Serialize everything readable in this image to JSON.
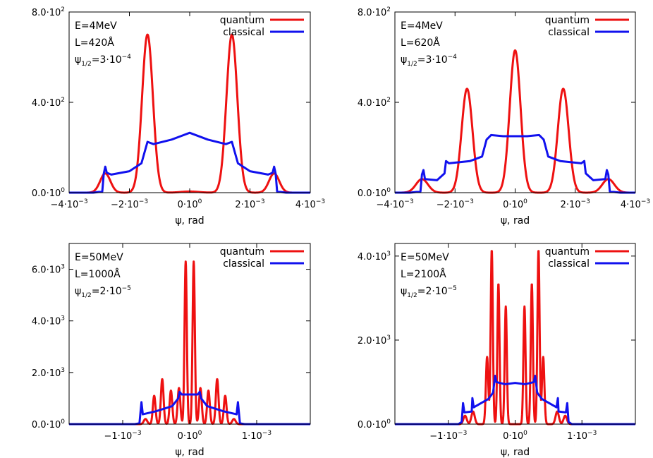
{
  "chart_data": [
    {
      "type": "line",
      "xlabel": "ψ, rad",
      "ylabel": "",
      "xlim": [
        -0.004,
        0.004
      ],
      "ylim": [
        0,
        800
      ],
      "grid": false,
      "legend_position": "top-right",
      "x_ticks": [
        {
          "v": -0.004,
          "mant": "-4·10",
          "exp": "-3"
        },
        {
          "v": -0.002,
          "mant": "-2·10",
          "exp": "-3"
        },
        {
          "v": 0,
          "mant": "0·10",
          "exp": "0"
        },
        {
          "v": 0.002,
          "mant": "2·10",
          "exp": "-3"
        },
        {
          "v": 0.004,
          "mant": "4·10",
          "exp": "-3"
        }
      ],
      "y_ticks": [
        {
          "v": 0,
          "mant": "0.0·10",
          "exp": "0"
        },
        {
          "v": 400,
          "mant": "4.0·10",
          "exp": "2"
        },
        {
          "v": 800,
          "mant": "8.0·10",
          "exp": "2"
        }
      ],
      "annotations": {
        "e": "E=4MeV",
        "l": "L=420Å",
        "psi_sym": "ψ",
        "psi_sub": "1/2",
        "psi_eq": "=3·10",
        "psi_exp": "-4"
      },
      "series": [
        {
          "name": "quantum",
          "color": "#ee1111",
          "peaks": [
            {
              "x": -0.0028,
              "h": 85,
              "w": 0.00017
            },
            {
              "x": -0.0014,
              "h": 700,
              "w": 0.00018
            },
            {
              "x": 0.0,
              "h": 5,
              "w": 0.0003
            },
            {
              "x": 0.0014,
              "h": 700,
              "w": 0.00018
            },
            {
              "x": 0.0028,
              "h": 85,
              "w": 0.00017
            }
          ]
        },
        {
          "name": "classical",
          "color": "#1111ee",
          "profile": [
            [
              -0.0032,
              0
            ],
            [
              -0.0029,
              5
            ],
            [
              -0.00285,
              85
            ],
            [
              -0.0028,
              115
            ],
            [
              -0.00275,
              88
            ],
            [
              -0.0026,
              80
            ],
            [
              -0.002,
              95
            ],
            [
              -0.0016,
              130
            ],
            [
              -0.0014,
              225
            ],
            [
              -0.0012,
              215
            ],
            [
              -0.0006,
              235
            ],
            [
              0,
              265
            ],
            [
              0.0006,
              235
            ],
            [
              0.0012,
              215
            ],
            [
              0.0014,
              225
            ],
            [
              0.0016,
              130
            ],
            [
              0.002,
              95
            ],
            [
              0.0026,
              80
            ],
            [
              0.00275,
              88
            ],
            [
              0.0028,
              115
            ],
            [
              0.00285,
              85
            ],
            [
              0.0029,
              5
            ],
            [
              0.0032,
              0
            ]
          ]
        }
      ]
    },
    {
      "type": "line",
      "xlabel": "ψ, rad",
      "ylabel": "",
      "xlim": [
        -0.004,
        0.004
      ],
      "ylim": [
        0,
        800
      ],
      "grid": false,
      "legend_position": "top-right",
      "x_ticks": [
        {
          "v": -0.004,
          "mant": "-4·10",
          "exp": "-3"
        },
        {
          "v": -0.002,
          "mant": "-2·10",
          "exp": "-3"
        },
        {
          "v": 0,
          "mant": "0·10",
          "exp": "0"
        },
        {
          "v": 0.002,
          "mant": "2·10",
          "exp": "-3"
        },
        {
          "v": 0.004,
          "mant": "4·10",
          "exp": "-3"
        }
      ],
      "y_ticks": [
        {
          "v": 0,
          "mant": "0.0·10",
          "exp": "0"
        },
        {
          "v": 400,
          "mant": "4.0·10",
          "exp": "2"
        },
        {
          "v": 800,
          "mant": "8.0·10",
          "exp": "2"
        }
      ],
      "annotations": {
        "e": "E=4MeV",
        "l": "L=620Å",
        "psi_sym": "ψ",
        "psi_sub": "1/2",
        "psi_eq": "=3·10",
        "psi_exp": "-4"
      },
      "series": [
        {
          "name": "quantum",
          "color": "#ee1111",
          "peaks": [
            {
              "x": -0.0031,
              "h": 60,
              "w": 0.0002
            },
            {
              "x": -0.0016,
              "h": 460,
              "w": 0.00018
            },
            {
              "x": 0.0,
              "h": 630,
              "w": 0.00018
            },
            {
              "x": 0.0016,
              "h": 460,
              "w": 0.00018
            },
            {
              "x": 0.0031,
              "h": 60,
              "w": 0.0002
            }
          ]
        },
        {
          "name": "classical",
          "color": "#1111ee",
          "profile": [
            [
              -0.0035,
              0
            ],
            [
              -0.00315,
              5
            ],
            [
              -0.0031,
              80
            ],
            [
              -0.00305,
              100
            ],
            [
              -0.003,
              60
            ],
            [
              -0.0026,
              55
            ],
            [
              -0.00235,
              85
            ],
            [
              -0.0023,
              140
            ],
            [
              -0.0022,
              130
            ],
            [
              -0.0015,
              140
            ],
            [
              -0.0011,
              160
            ],
            [
              -0.00095,
              235
            ],
            [
              -0.0008,
              255
            ],
            [
              -0.0004,
              250
            ],
            [
              0,
              250
            ],
            [
              0.0004,
              250
            ],
            [
              0.0008,
              255
            ],
            [
              0.00095,
              235
            ],
            [
              0.0011,
              160
            ],
            [
              0.0015,
              140
            ],
            [
              0.0022,
              130
            ],
            [
              0.0023,
              140
            ],
            [
              0.00235,
              85
            ],
            [
              0.0026,
              55
            ],
            [
              0.003,
              60
            ],
            [
              0.00305,
              100
            ],
            [
              0.0031,
              80
            ],
            [
              0.00315,
              5
            ],
            [
              0.0035,
              0
            ]
          ]
        }
      ]
    },
    {
      "type": "line",
      "xlabel": "ψ, rad",
      "ylabel": "",
      "xlim": [
        -0.0018,
        0.0018
      ],
      "ylim": [
        0,
        7000
      ],
      "grid": false,
      "legend_position": "top-right",
      "x_ticks": [
        {
          "v": -0.001,
          "mant": "-1·10",
          "exp": "-3"
        },
        {
          "v": 0,
          "mant": "0·10",
          "exp": "0"
        },
        {
          "v": 0.001,
          "mant": "1·10",
          "exp": "-3"
        }
      ],
      "y_ticks": [
        {
          "v": 0,
          "mant": "0.0·10",
          "exp": "0"
        },
        {
          "v": 2000,
          "mant": "2.0·10",
          "exp": "3"
        },
        {
          "v": 4000,
          "mant": "4.0·10",
          "exp": "3"
        },
        {
          "v": 6000,
          "mant": "6.0·10",
          "exp": "3"
        }
      ],
      "annotations": {
        "e": "E=50MeV",
        "l": "L=1000Å",
        "psi_sym": "ψ",
        "psi_sub": "1/2",
        "psi_eq": "=2·10",
        "psi_exp": "-5"
      },
      "series": [
        {
          "name": "quantum",
          "color": "#ee1111",
          "peaks": [
            {
              "x": -0.00066,
              "h": 200,
              "w": 2.5e-05
            },
            {
              "x": -0.00053,
              "h": 1100,
              "w": 2e-05
            },
            {
              "x": -0.00041,
              "h": 1750,
              "w": 2e-05
            },
            {
              "x": -0.00028,
              "h": 1300,
              "w": 2e-05
            },
            {
              "x": -0.00016,
              "h": 1400,
              "w": 2e-05
            },
            {
              "x": -6e-05,
              "h": 6300,
              "w": 1.7e-05
            },
            {
              "x": 6e-05,
              "h": 6300,
              "w": 1.7e-05
            },
            {
              "x": 0.00016,
              "h": 1400,
              "w": 2e-05
            },
            {
              "x": 0.00028,
              "h": 1300,
              "w": 2e-05
            },
            {
              "x": 0.00041,
              "h": 1750,
              "w": 2e-05
            },
            {
              "x": 0.00053,
              "h": 1100,
              "w": 2e-05
            },
            {
              "x": 0.00066,
              "h": 200,
              "w": 2.5e-05
            }
          ]
        },
        {
          "name": "classical",
          "color": "#1111ee",
          "profile": [
            [
              -0.00082,
              0
            ],
            [
              -0.00075,
              30
            ],
            [
              -0.00072,
              850
            ],
            [
              -0.0007,
              380
            ],
            [
              -0.0005,
              500
            ],
            [
              -0.00026,
              700
            ],
            [
              -0.00017,
              1000
            ],
            [
              -0.00015,
              1250
            ],
            [
              -0.00012,
              1150
            ],
            [
              0,
              1150
            ],
            [
              0.00012,
              1150
            ],
            [
              0.00015,
              1250
            ],
            [
              0.00017,
              1000
            ],
            [
              0.00026,
              700
            ],
            [
              0.0005,
              500
            ],
            [
              0.0007,
              380
            ],
            [
              0.00072,
              850
            ],
            [
              0.00075,
              30
            ],
            [
              0.00082,
              0
            ]
          ]
        }
      ]
    },
    {
      "type": "line",
      "xlabel": "ψ, rad",
      "ylabel": "",
      "xlim": [
        -0.0018,
        0.0018
      ],
      "ylim": [
        0,
        4300
      ],
      "grid": false,
      "legend_position": "top-right",
      "x_ticks": [
        {
          "v": -0.001,
          "mant": "-1·10",
          "exp": "-3"
        },
        {
          "v": 0,
          "mant": "0·10",
          "exp": "0"
        },
        {
          "v": 0.001,
          "mant": "1·10",
          "exp": "-3"
        }
      ],
      "y_ticks": [
        {
          "v": 0,
          "mant": "0.0·10",
          "exp": "0"
        },
        {
          "v": 2000,
          "mant": "2.0·10",
          "exp": "3"
        },
        {
          "v": 4000,
          "mant": "4.0·10",
          "exp": "3"
        }
      ],
      "annotations": {
        "e": "E=50MeV",
        "l": "L=2100Å",
        "psi_sym": "ψ",
        "psi_sub": "1/2",
        "psi_eq": "=2·10",
        "psi_exp": "-5"
      },
      "series": [
        {
          "name": "quantum",
          "color": "#ee1111",
          "peaks": [
            {
              "x": -0.00075,
              "h": 200,
              "w": 2.5e-05
            },
            {
              "x": -0.00063,
              "h": 300,
              "w": 2.5e-05
            },
            {
              "x": -0.00042,
              "h": 1600,
              "w": 1.8e-05
            },
            {
              "x": -0.00035,
              "h": 4150,
              "w": 1.6e-05
            },
            {
              "x": -0.00025,
              "h": 3350,
              "w": 1.6e-05
            },
            {
              "x": -0.00014,
              "h": 2800,
              "w": 1.6e-05
            },
            {
              "x": 0.00014,
              "h": 2800,
              "w": 1.6e-05
            },
            {
              "x": 0.00025,
              "h": 3350,
              "w": 1.6e-05
            },
            {
              "x": 0.00035,
              "h": 4150,
              "w": 1.6e-05
            },
            {
              "x": 0.00042,
              "h": 1600,
              "w": 1.8e-05
            },
            {
              "x": 0.00063,
              "h": 300,
              "w": 2.5e-05
            },
            {
              "x": 0.00075,
              "h": 200,
              "w": 2.5e-05
            }
          ]
        },
        {
          "name": "classical",
          "color": "#1111ee",
          "profile": [
            [
              -0.00085,
              0
            ],
            [
              -0.0008,
              50
            ],
            [
              -0.00078,
              500
            ],
            [
              -0.00076,
              280
            ],
            [
              -0.00065,
              300
            ],
            [
              -0.00064,
              620
            ],
            [
              -0.00062,
              400
            ],
            [
              -0.0004,
              600
            ],
            [
              -0.00033,
              750
            ],
            [
              -0.0003,
              1150
            ],
            [
              -0.00028,
              1000
            ],
            [
              -0.00015,
              950
            ],
            [
              0,
              980
            ],
            [
              0.00015,
              950
            ],
            [
              0.00028,
              1000
            ],
            [
              0.0003,
              1150
            ],
            [
              0.00033,
              750
            ],
            [
              0.0004,
              600
            ],
            [
              0.00062,
              400
            ],
            [
              0.00064,
              620
            ],
            [
              0.00065,
              300
            ],
            [
              0.00076,
              280
            ],
            [
              0.00078,
              500
            ],
            [
              0.0008,
              50
            ],
            [
              0.00085,
              0
            ]
          ]
        }
      ]
    }
  ]
}
